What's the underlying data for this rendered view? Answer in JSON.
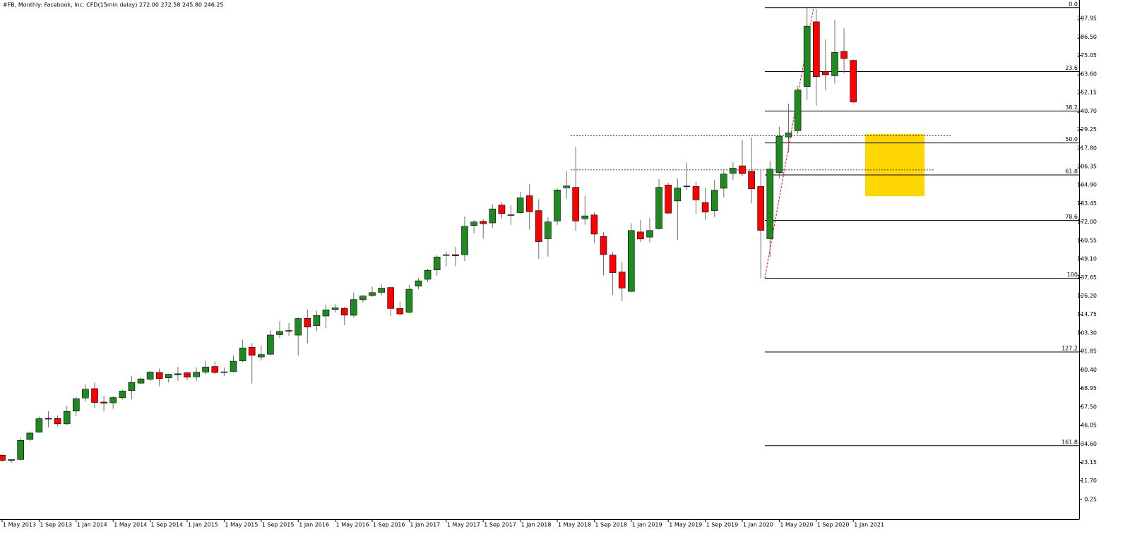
{
  "chart_data": {
    "type": "candlestick",
    "title": "#FB, Monthly:  Facebook, Inc. CFD(15min delay)  272.00 272.58 245.80 246.25",
    "categories": [
      "1 May 2013",
      null,
      null,
      null,
      "1 Sep 2013",
      null,
      null,
      null,
      "1 Jan 2014",
      null,
      null,
      null,
      "1 May 2014",
      null,
      null,
      null,
      "1 Sep 2014",
      null,
      null,
      null,
      "1 Jan 2015",
      null,
      null,
      null,
      "1 May 2015",
      null,
      null,
      null,
      "1 Sep 2015",
      null,
      null,
      null,
      "1 Jan 2016",
      null,
      null,
      null,
      "1 May 2016",
      null,
      null,
      null,
      "1 Sep 2016",
      null,
      null,
      null,
      "1 Jan 2017",
      null,
      null,
      null,
      "1 May 2017",
      null,
      null,
      null,
      "1 Sep 2017",
      null,
      null,
      null,
      "1 Jan 2018",
      null,
      null,
      null,
      "1 May 2018",
      null,
      null,
      null,
      "1 Sep 2018",
      null,
      null,
      null,
      "1 Jan 2019",
      null,
      null,
      null,
      "1 May 2019",
      null,
      null,
      null,
      "1 Sep 2019",
      null,
      null,
      null,
      "1 Jan 2020",
      null,
      null,
      null,
      "1 May 2020",
      null,
      null,
      null,
      "1 Sep 2020",
      null,
      null,
      null,
      "1 Jan 2021"
    ],
    "open": [
      27.6,
      24.3,
      24.97,
      37.3,
      41.8,
      50.4,
      50.3,
      47.0,
      54.9,
      63.0,
      68.8,
      60.5,
      60.0,
      63.2,
      67.6,
      72.2,
      74.6,
      78.8,
      75.5,
      77.3,
      78.6,
      76.1,
      79.0,
      82.5,
      79.0,
      79.3,
      86.0,
      94.4,
      88.4,
      90.1,
      102.2,
      104.8,
      101.95,
      112.3,
      107.8,
      113.75,
      117.8,
      118.5,
      114.2,
      123.85,
      126.4,
      128.4,
      131.4,
      118.4,
      116.03,
      132.25,
      136.5,
      142.3,
      151.7,
      151.75,
      151.7,
      169.8,
      172.4,
      171.4,
      182.4,
      176.0,
      177.7,
      188.2,
      179.0,
      161.6,
      172.6,
      193.1,
      193.4,
      173.9,
      176.3,
      163.0,
      151.5,
      141.0,
      128.99,
      165.8,
      162.6,
      167.8,
      194.8,
      185.0,
      193.9,
      194.0,
      184.0,
      179.0,
      192.85,
      202.1,
      206.75,
      203.4,
      194.0,
      161.6,
      202.5,
      224.6,
      228.5,
      255.8,
      295.9,
      265.1,
      262.5,
      277.6,
      272.0
    ],
    "high": [
      28.0,
      25.0,
      38.31,
      42.3,
      51.6,
      54.8,
      52.1,
      58.0,
      63.4,
      71.4,
      72.6,
      64.4,
      63.9,
      68.0,
      76.7,
      75.6,
      79.7,
      81.2,
      78.0,
      82.2,
      79.2,
      82.0,
      86.1,
      85.6,
      81.8,
      89.4,
      99.2,
      96.9,
      95.6,
      105.1,
      110.6,
      109.4,
      112.8,
      117.6,
      116.99,
      120.8,
      121.08,
      119.4,
      128.3,
      126.7,
      131.98,
      133.5,
      131.9,
      122.5,
      133.1,
      137.2,
      143.0,
      151.5,
      153.6,
      156.5,
      175.5,
      173.05,
      174.0,
      182.9,
      184.2,
      182.3,
      190.7,
      195.3,
      186.1,
      174.9,
      192.7,
      203.6,
      218.6,
      188.3,
      177.9,
      165.9,
      153.5,
      147.2,
      171.2,
      173.3,
      174.3,
      198.5,
      196.2,
      198.9,
      208.7,
      197.1,
      193.1,
      198.1,
      203.8,
      208.9,
      222.6,
      224.2,
      204.4,
      209.7,
      231.0,
      245.2,
      255.9,
      304.7,
      303.6,
      285.0,
      297.0,
      291.8,
      272.58
    ],
    "low": [
      23.4,
      22.7,
      24.3,
      36.3,
      41.5,
      44.8,
      45.3,
      46.3,
      51.8,
      60.7,
      57.0,
      54.7,
      56.3,
      62.0,
      62.2,
      71.6,
      73.6,
      70.3,
      72.5,
      73.6,
      74.0,
      73.4,
      77.6,
      78.0,
      76.6,
      79.0,
      85.3,
      72.0,
      86.1,
      89.3,
      100.2,
      101.5,
      89.4,
      96.8,
      104.4,
      106.3,
      115.9,
      108.2,
      112.96,
      122.1,
      125.6,
      126.7,
      113.6,
      114.0,
      115.5,
      130.3,
      134.6,
      138.8,
      144.4,
      144.6,
      147.8,
      165.0,
      161.6,
      168.3,
      174.0,
      170.2,
      177.1,
      167.2,
      149.0,
      150.5,
      170.2,
      186.4,
      166.6,
      170.3,
      158.9,
      139.0,
      126.85,
      123.0,
      128.6,
      159.6,
      159.3,
      167.3,
      177.1,
      160.8,
      191.9,
      176.7,
      173.1,
      175.0,
      187.1,
      197.8,
      200.5,
      183.5,
      137.1,
      150.3,
      198.8,
      215.0,
      226.6,
      247.4,
      244.1,
      253.5,
      257.7,
      263.8,
      245.8
    ],
    "close": [
      24.35,
      24.88,
      36.8,
      41.3,
      50.2,
      50.2,
      47.0,
      54.65,
      62.57,
      68.46,
      60.24,
      59.78,
      63.3,
      67.29,
      72.65,
      74.82,
      79.04,
      74.99,
      77.7,
      78.02,
      75.91,
      78.97,
      82.22,
      78.77,
      79.19,
      85.77,
      94.01,
      89.43,
      89.9,
      101.97,
      104.24,
      104.66,
      112.21,
      106.92,
      114.1,
      117.58,
      118.81,
      114.28,
      123.94,
      126.12,
      128.27,
      130.99,
      118.42,
      115.05,
      130.32,
      135.54,
      142.05,
      150.25,
      151.46,
      150.98,
      169.25,
      171.97,
      170.87,
      180.06,
      177.18,
      176.46,
      186.89,
      178.32,
      159.79,
      172.0,
      191.78,
      194.32,
      172.58,
      175.73,
      164.46,
      151.79,
      140.61,
      131.09,
      166.69,
      161.45,
      166.69,
      193.4,
      177.47,
      193.0,
      194.23,
      185.67,
      178.08,
      191.65,
      201.64,
      205.25,
      201.91,
      192.47,
      166.8,
      204.71,
      225.09,
      227.07,
      253.67,
      293.2,
      261.9,
      263.11,
      276.97,
      273.16,
      246.25
    ],
    "up_color": "#1f8a1f",
    "down_color": "#ff0000",
    "ylim": [
      -12.0,
      309.4
    ],
    "yticks": [
      0.25,
      {
        "value": 11.7,
        "label": "11.70"
      },
      23.15,
      {
        "value": 34.6,
        "label": "34.60"
      },
      46.05,
      {
        "value": 57.5,
        "label": "57.50"
      },
      68.95,
      {
        "value": 80.4,
        "label": "80.40"
      },
      91.85,
      {
        "value": 103.3,
        "label": "103.30"
      },
      114.75,
      {
        "value": 126.2,
        "label": "126.20"
      },
      137.65,
      {
        "value": 149.1,
        "label": "149.10"
      },
      160.55,
      {
        "value": 172,
        "label": "172.00"
      },
      183.45,
      {
        "value": 194.9,
        "label": "194.90"
      },
      206.35,
      {
        "value": 217.8,
        "label": "217.80"
      },
      229.25,
      {
        "value": 240.7,
        "label": "240.70"
      },
      252.15,
      {
        "value": 263.6,
        "label": "263.60"
      },
      275.05,
      {
        "value": 286.5,
        "label": "286.50"
      },
      297.95
    ],
    "fibo": {
      "low": 137.1,
      "high": 304.7,
      "color": "#ff0000",
      "levels": [
        {
          "label": "0.0",
          "price": 304.7
        },
        {
          "label": "23.6",
          "price": 265.1
        },
        {
          "label": "38.2",
          "price": 240.7
        },
        {
          "label": "50.0",
          "price": 220.9
        },
        {
          "label": "61.8",
          "price": 201.1
        },
        {
          "label": "78.6",
          "price": 172.9
        },
        {
          "label": "100",
          "price": 137.1
        },
        {
          "label": "127.2",
          "price": 91.5
        },
        {
          "label": "161.8",
          "price": 33.5
        }
      ]
    },
    "zone": {
      "top": 226.5,
      "bottom": 188.0,
      "color": "#ffd700"
    },
    "hlines": [
      225.4,
      204.2
    ]
  }
}
